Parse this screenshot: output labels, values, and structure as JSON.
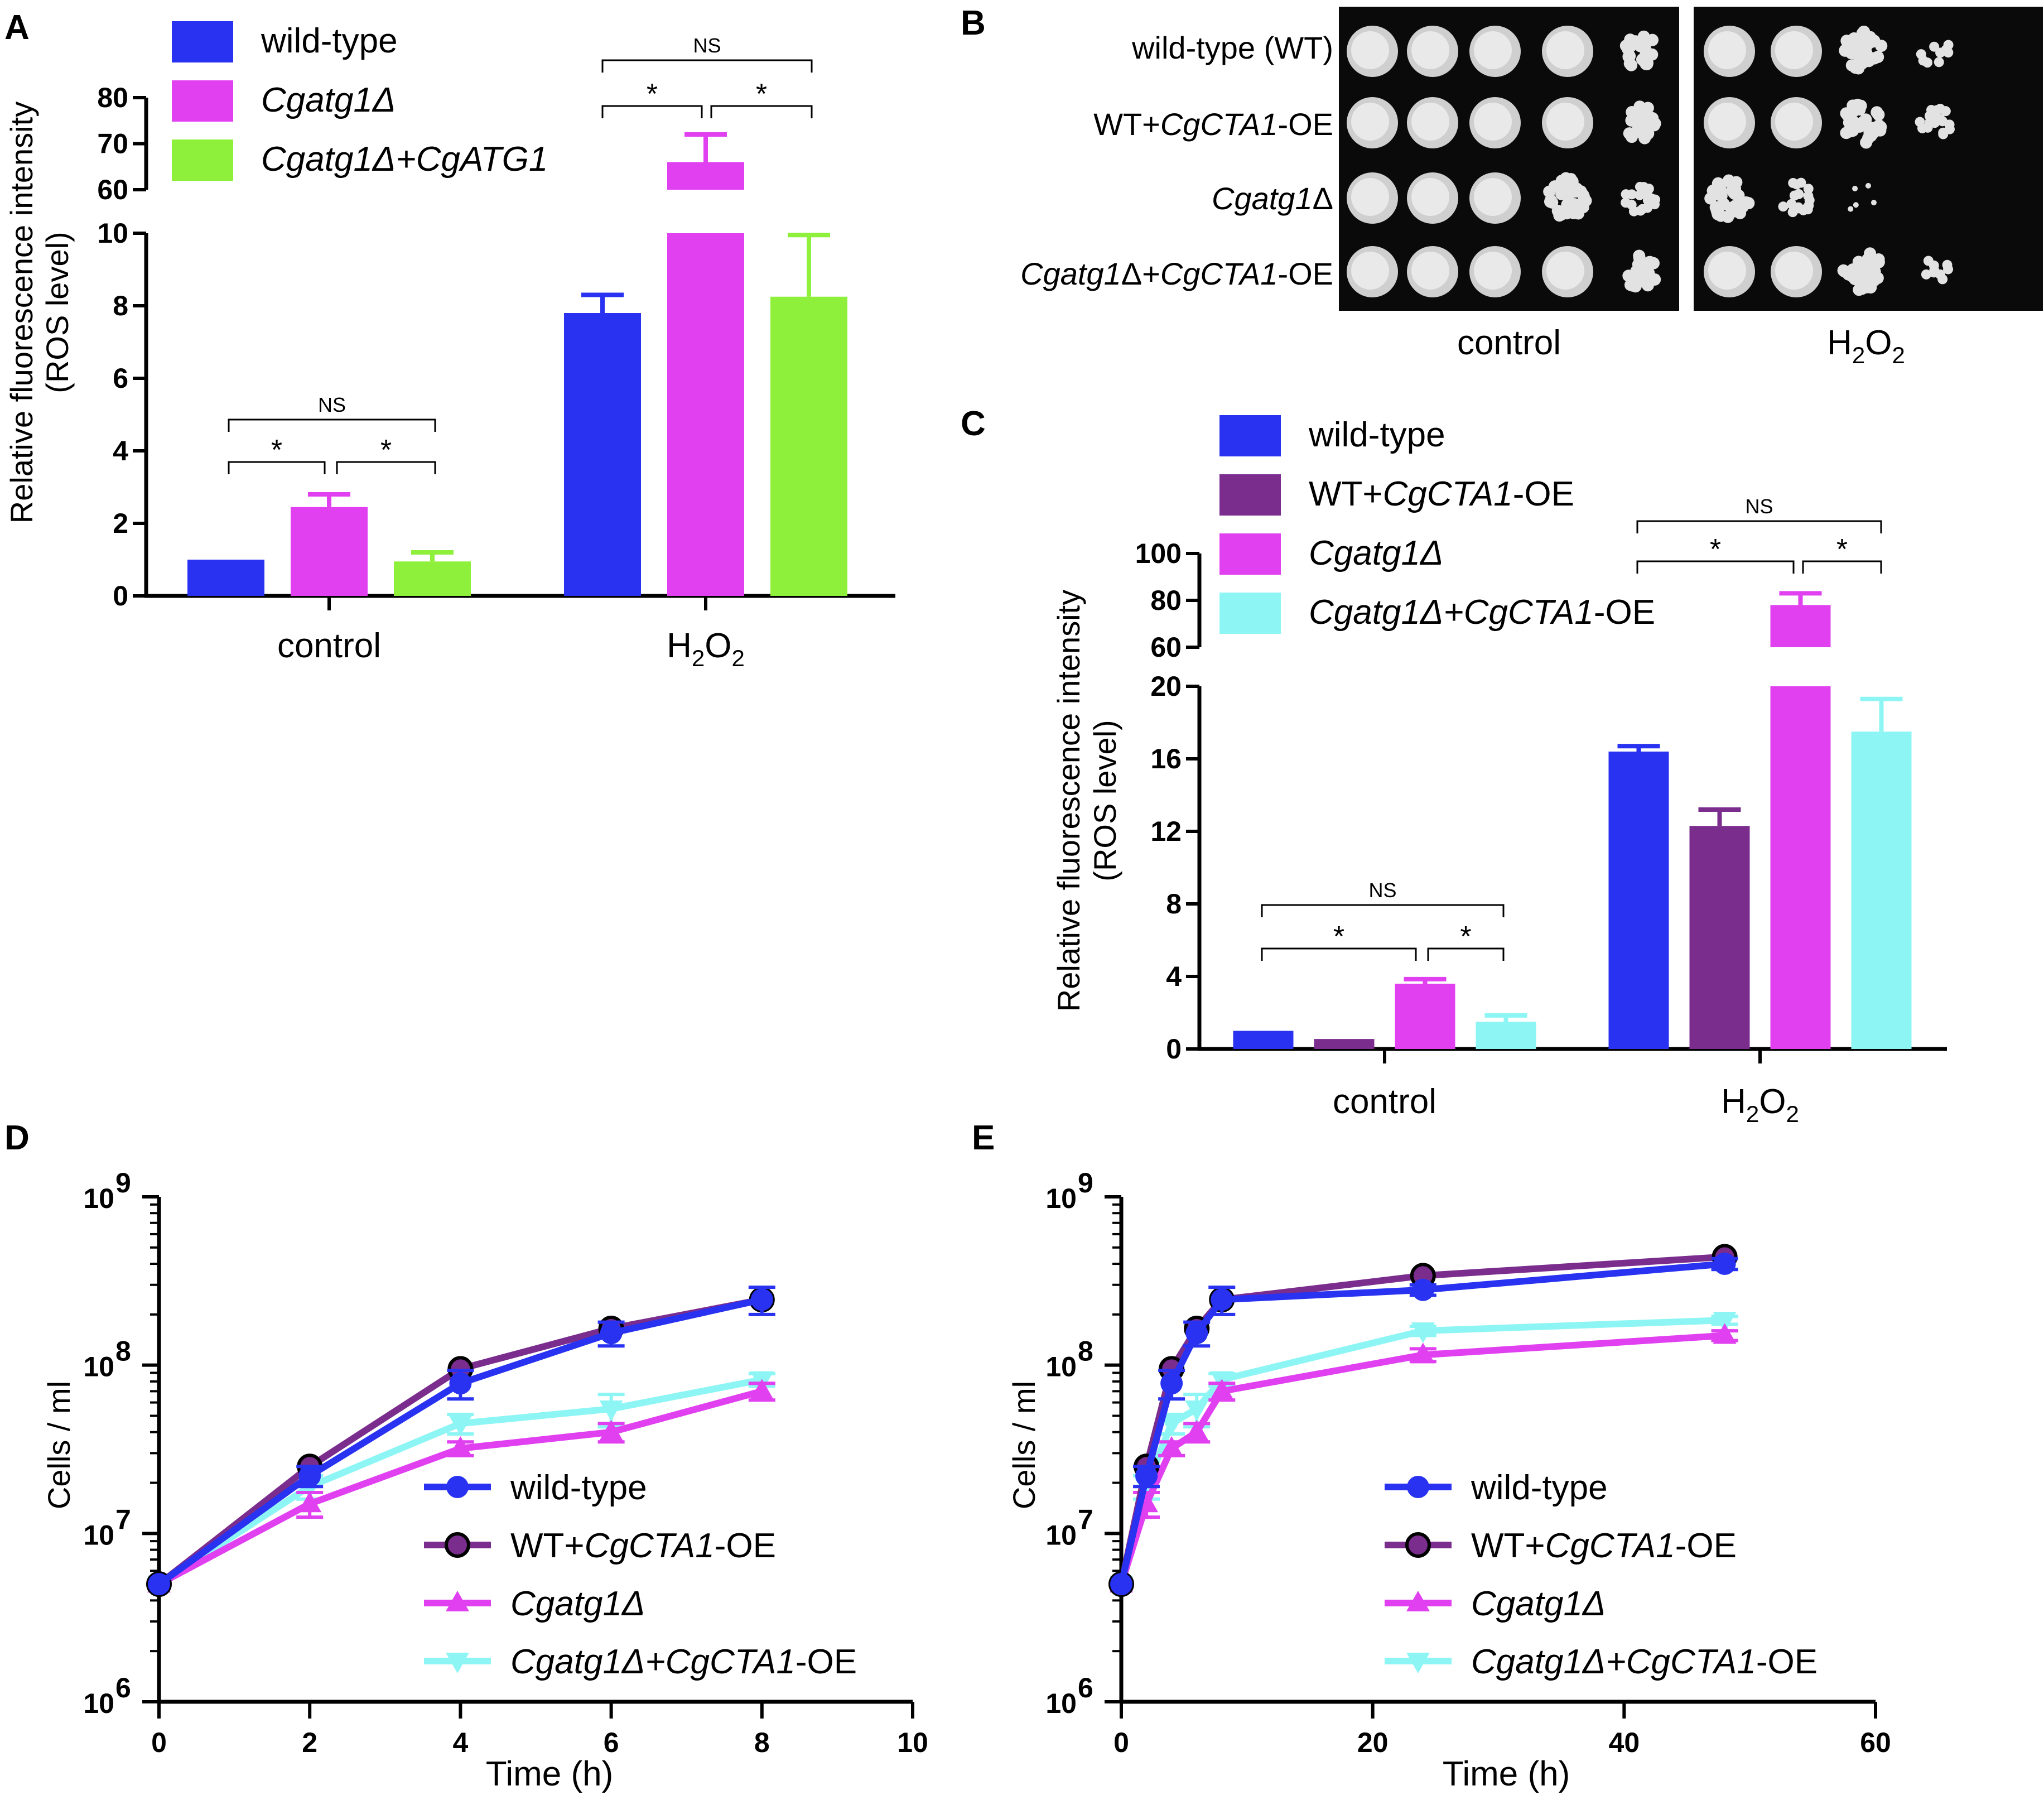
{
  "panels": {
    "A": "A",
    "B": "B",
    "C": "C",
    "D": "D",
    "E": "E"
  },
  "colors": {
    "wild_type": "#2832f0",
    "wt_cta1": "#7b2d8e",
    "cgatg1": "#e040f0",
    "cgatg1_atg1": "#8ef03a",
    "cgatg1_cta1": "#8ef5f5"
  },
  "chart_data": [
    {
      "id": "A",
      "type": "bar",
      "title": "",
      "ylabel_line1": "Relative fluorescence intensity",
      "ylabel_line2": "(ROS level)",
      "categories": [
        "control",
        "H2O2"
      ],
      "category_labels": [
        "control",
        "H",
        "2",
        "O",
        "2"
      ],
      "ylim_lower": [
        0,
        10
      ],
      "ylim_upper": [
        60,
        80
      ],
      "yticks_lower": [
        "0",
        "2",
        "4",
        "6",
        "8",
        "10"
      ],
      "yticks_upper": [
        "60",
        "70",
        "80"
      ],
      "legend": [
        {
          "name": "wild-type",
          "italic_part": "",
          "suffix": ""
        },
        {
          "name": "",
          "italic_part": "Cgatg1Δ",
          "suffix": ""
        },
        {
          "name": "",
          "italic_part": "Cgatg1Δ+CgATG1",
          "suffix": ""
        }
      ],
      "series": [
        {
          "name": "wild-type",
          "values": [
            1.0,
            7.8
          ],
          "errors": [
            0.0,
            0.5
          ]
        },
        {
          "name": "Cgatg1Δ",
          "values": [
            2.45,
            66.0
          ],
          "errors": [
            0.35,
            6.0
          ]
        },
        {
          "name": "Cgatg1Δ+CgATG1",
          "values": [
            0.95,
            8.25
          ],
          "errors": [
            0.25,
            1.7
          ]
        }
      ],
      "significance": {
        "ns": "NS",
        "star": "*"
      }
    },
    {
      "id": "C",
      "type": "bar",
      "title": "",
      "ylabel_line1": "Relative fluorescence intensity",
      "ylabel_line2": "(ROS level)",
      "categories": [
        "control",
        "H2O2"
      ],
      "category_labels": [
        "control",
        "H",
        "2",
        "O",
        "2"
      ],
      "ylim_lower": [
        0,
        20
      ],
      "ylim_upper": [
        60,
        100
      ],
      "yticks_lower": [
        "0",
        "4",
        "8",
        "12",
        "16",
        "20"
      ],
      "yticks_upper": [
        "60",
        "80",
        "100"
      ],
      "legend": [
        {
          "name": "wild-type",
          "italic_part": "",
          "suffix": ""
        },
        {
          "name": "WT+",
          "italic_part": "CgCTA1",
          "suffix": "-OE"
        },
        {
          "name": "",
          "italic_part": "Cgatg1Δ",
          "suffix": ""
        },
        {
          "name": "",
          "italic_part": "Cgatg1Δ+CgCTA1",
          "suffix": "-OE"
        }
      ],
      "series": [
        {
          "name": "wild-type",
          "values": [
            1.0,
            16.4
          ],
          "errors": [
            0.0,
            0.3
          ]
        },
        {
          "name": "WT+CgCTA1-OE",
          "values": [
            0.55,
            12.3
          ],
          "errors": [
            0.0,
            0.9
          ]
        },
        {
          "name": "Cgatg1Δ",
          "values": [
            3.6,
            78.0
          ],
          "errors": [
            0.25,
            5.0
          ]
        },
        {
          "name": "Cgatg1Δ+CgCTA1-OE",
          "values": [
            1.5,
            17.5
          ],
          "errors": [
            0.35,
            1.8
          ]
        }
      ],
      "significance": {
        "ns": "NS",
        "star": "*"
      }
    },
    {
      "id": "D",
      "type": "line",
      "xlabel": "Time (h)",
      "ylabel": "Cells / ml",
      "xlim": [
        0,
        10
      ],
      "xticks": [
        "0",
        "2",
        "4",
        "6",
        "8",
        "10"
      ],
      "ylim_log10": [
        6,
        9
      ],
      "yticks": [
        "10",
        "10",
        "10",
        "10"
      ],
      "yticks_exp": [
        "6",
        "7",
        "8",
        "9"
      ],
      "legend": [
        {
          "name": "wild-type",
          "italic_part": "",
          "suffix": ""
        },
        {
          "name": "WT+",
          "italic_part": "CgCTA1",
          "suffix": "-OE"
        },
        {
          "name": "",
          "italic_part": "Cgatg1Δ",
          "suffix": ""
        },
        {
          "name": "",
          "italic_part": "Cgatg1Δ+CgCTA1",
          "suffix": "-OE"
        }
      ],
      "series": [
        {
          "name": "wild-type",
          "marker": "circle",
          "x": [
            0,
            2,
            4,
            6,
            8
          ],
          "y": [
            5000000,
            22000000,
            78000000,
            155000000,
            245000000
          ],
          "errors": [
            0,
            3000000,
            15000000,
            25000000,
            45000000
          ]
        },
        {
          "name": "WT+CgCTA1-OE",
          "marker": "circle-outline",
          "x": [
            0,
            2,
            4,
            6,
            8
          ],
          "y": [
            5000000,
            25000000,
            95000000,
            165000000,
            245000000
          ],
          "errors": [
            0,
            0,
            0,
            0,
            0
          ]
        },
        {
          "name": "Cgatg1Δ",
          "marker": "triangle-up",
          "x": [
            0,
            2,
            4,
            6,
            8
          ],
          "y": [
            5000000,
            15000000,
            32000000,
            40000000,
            70000000
          ],
          "errors": [
            0,
            2500000,
            3000000,
            5000000,
            8000000
          ]
        },
        {
          "name": "Cgatg1Δ+CgCTA1-OE",
          "marker": "triangle-down",
          "x": [
            0,
            2,
            4,
            6,
            8
          ],
          "y": [
            5000000,
            19000000,
            45000000,
            55000000,
            82000000
          ],
          "errors": [
            0,
            3000000,
            6000000,
            12000000,
            7000000
          ]
        }
      ]
    },
    {
      "id": "E",
      "type": "line",
      "xlabel": "Time (h)",
      "ylabel": "Cells / ml",
      "xlim": [
        0,
        60
      ],
      "xticks": [
        "0",
        "20",
        "40",
        "60"
      ],
      "ylim_log10": [
        6,
        9
      ],
      "yticks": [
        "10",
        "10",
        "10",
        "10"
      ],
      "yticks_exp": [
        "6",
        "7",
        "8",
        "9"
      ],
      "legend": [
        {
          "name": "wild-type",
          "italic_part": "",
          "suffix": ""
        },
        {
          "name": "WT+",
          "italic_part": "CgCTA1",
          "suffix": "-OE"
        },
        {
          "name": "",
          "italic_part": "Cgatg1Δ",
          "suffix": ""
        },
        {
          "name": "",
          "italic_part": "Cgatg1Δ+CgCTA1",
          "suffix": "-OE"
        }
      ],
      "series": [
        {
          "name": "wild-type",
          "marker": "circle",
          "x": [
            0,
            2,
            4,
            6,
            8,
            24,
            48
          ],
          "y": [
            5000000,
            22000000,
            78000000,
            155000000,
            245000000,
            280000000,
            400000000
          ],
          "errors": [
            0,
            3000000,
            15000000,
            25000000,
            45000000,
            20000000,
            30000000
          ]
        },
        {
          "name": "WT+CgCTA1-OE",
          "marker": "circle-outline",
          "x": [
            0,
            2,
            4,
            6,
            8,
            24,
            48
          ],
          "y": [
            5000000,
            25000000,
            95000000,
            165000000,
            245000000,
            340000000,
            440000000
          ],
          "errors": [
            0,
            0,
            0,
            0,
            0,
            0,
            0
          ]
        },
        {
          "name": "Cgatg1Δ",
          "marker": "triangle-up",
          "x": [
            0,
            2,
            4,
            6,
            8,
            24,
            48
          ],
          "y": [
            5000000,
            15000000,
            32000000,
            40000000,
            70000000,
            115000000,
            150000000
          ],
          "errors": [
            0,
            2500000,
            3000000,
            5000000,
            8000000,
            10000000,
            10000000
          ]
        },
        {
          "name": "Cgatg1Δ+CgCTA1-OE",
          "marker": "triangle-down",
          "x": [
            0,
            2,
            4,
            6,
            8,
            24,
            48
          ],
          "y": [
            5000000,
            19000000,
            45000000,
            55000000,
            82000000,
            160000000,
            185000000
          ],
          "errors": [
            0,
            3000000,
            6000000,
            12000000,
            7000000,
            10000000,
            10000000
          ]
        }
      ]
    }
  ],
  "spot_assay": {
    "rows": [
      {
        "prefix": "wild-type (WT)",
        "italic": "",
        "suffix": ""
      },
      {
        "prefix": "WT+",
        "italic": "CgCTA1",
        "suffix": "-OE"
      },
      {
        "prefix": "",
        "italic": "Cgatg1",
        "suffix": "Δ"
      },
      {
        "prefix": "",
        "italic": "Cgatg1",
        "suffix": "Δ+CgCTA1-OE"
      }
    ],
    "rows_display": [
      {
        "a": "wild-type (WT)",
        "b": "",
        "c": ""
      },
      {
        "a": "WT+",
        "b": "CgCTA1",
        "c": "-OE"
      },
      {
        "a": "",
        "b": "Cgatg1",
        "c": "Δ"
      },
      {
        "a": "",
        "b": "Cgatg1",
        "c": "Δ+"
      },
      {
        "a": "",
        "b": "CgCTA1",
        "c": "-OE"
      }
    ],
    "conditions": [
      "control",
      "H",
      "2",
      "O",
      "2"
    ],
    "growth_control": [
      [
        5,
        5,
        5,
        5,
        3
      ],
      [
        5,
        5,
        5,
        5,
        3
      ],
      [
        5,
        5,
        5,
        4,
        2
      ],
      [
        5,
        5,
        5,
        5,
        3
      ]
    ],
    "growth_h2o2": [
      [
        5,
        5,
        4,
        1,
        0
      ],
      [
        5,
        5,
        4,
        2,
        0
      ],
      [
        4,
        2,
        0.5,
        0,
        0
      ],
      [
        5,
        5,
        4,
        1,
        0
      ]
    ]
  }
}
